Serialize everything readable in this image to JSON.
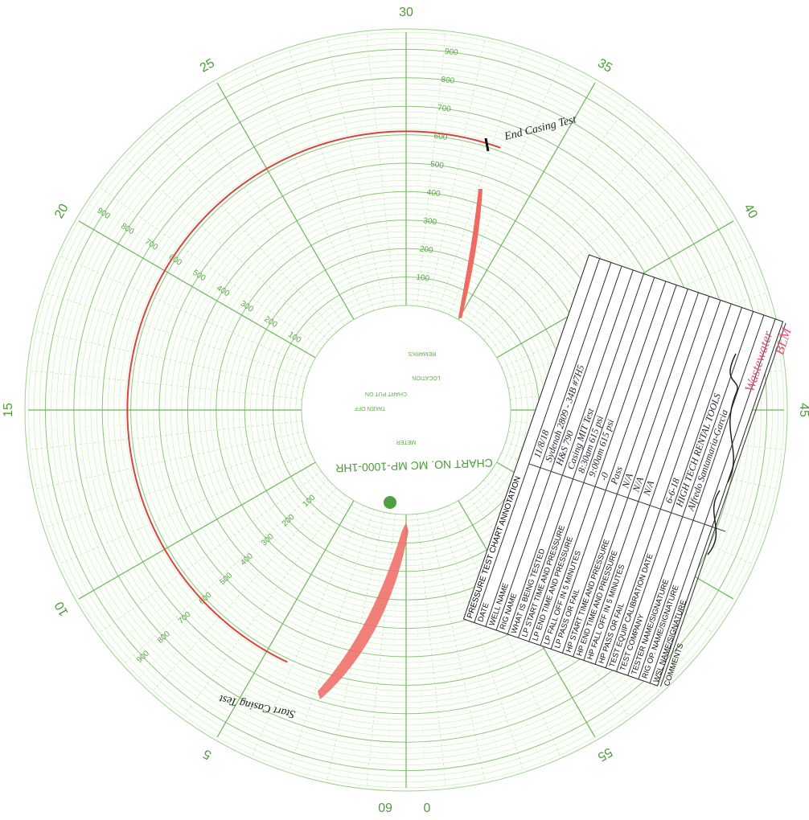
{
  "chart": {
    "minute_labels": [
      0,
      5,
      10,
      15,
      20,
      25,
      30,
      35,
      40,
      45,
      55,
      60
    ],
    "pressure_labels": [
      100,
      200,
      300,
      400,
      500,
      600,
      700,
      800,
      900
    ],
    "center_text": "CHART NO. MC MP-1000-1HR",
    "center_small": [
      "REMARKS",
      "LOCATION",
      "CHART PUT ON",
      "TAKEN OFF",
      "METER"
    ],
    "end_note": "End Casing Test",
    "start_note": "Start Casing Test",
    "pink_note": [
      "Wastewater",
      "BLM"
    ]
  },
  "label": {
    "title": "PRESSURE TEST CHART ANNOTATION",
    "rows": [
      [
        "DATE",
        "11/8/18"
      ],
      [
        "WELL NAME",
        "Sydenah 2809 - 34B  #7H5"
      ],
      [
        "RIG NAME",
        "H&S 790"
      ],
      [
        "WHAT IS BEING TESTED",
        "Casing MIT Test"
      ],
      [
        "LP START TIME AND PRESSURE",
        "8:30am 615 psi"
      ],
      [
        "LP END TIME AND PRESSURE",
        "9:00am 615 psi"
      ],
      [
        "LP FALL OFF IN 5 MINUTES",
        "-0"
      ],
      [
        "LP PASS OR FAIL",
        "Pass"
      ],
      [
        "HP START TIME AND PRESSURE",
        "N/A"
      ],
      [
        "HP END TIME AND PRESSURE",
        "N/A"
      ],
      [
        "HP FALL OFF IN 5 MINUTES",
        "N/A"
      ],
      [
        "HP PASS OR FAIL"
      ],
      [
        "TEST EQUIP CALIBRATION DATE",
        "6-6-18"
      ],
      [
        "TEST COMPANY",
        "HIGH TECH RENTAL TOOLS"
      ],
      [
        "TESTER NAME/SIGNATURE",
        "Alfredo Santamaria-Garcia"
      ],
      [
        "RIG OP. NAME/SIGNATURE"
      ],
      [
        "WSL NAME/SIGNATURE"
      ],
      [
        "COMMENTS"
      ]
    ]
  }
}
